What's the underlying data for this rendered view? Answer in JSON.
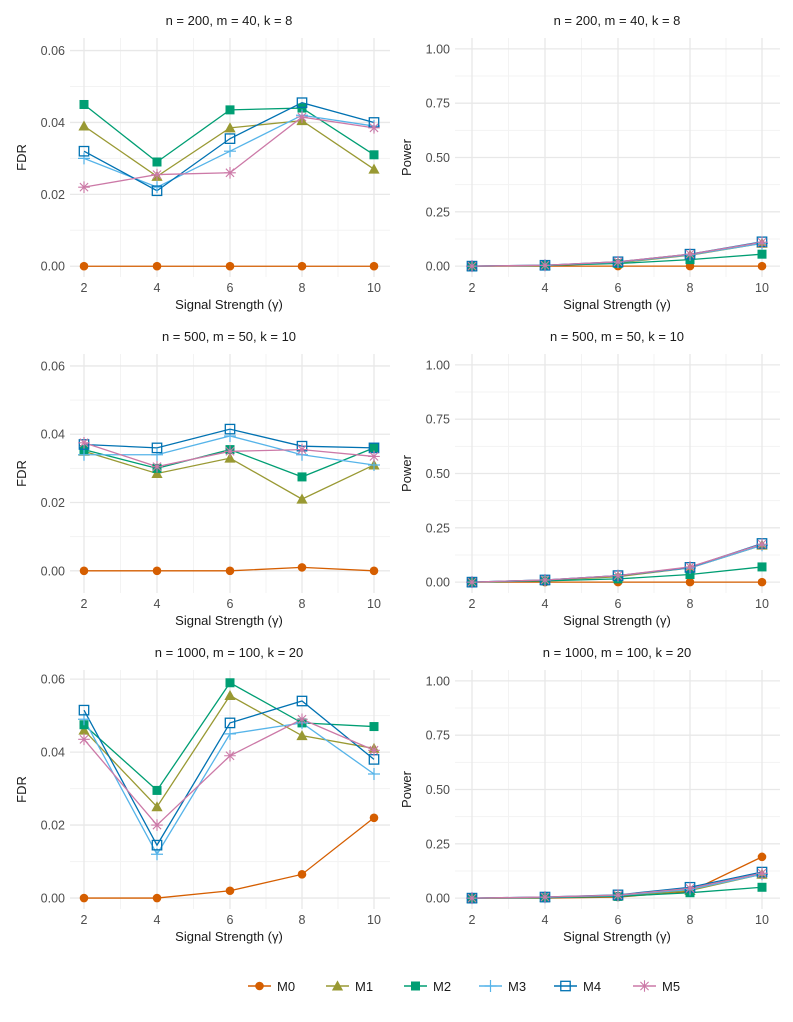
{
  "chart_data": [
    {
      "type": "line",
      "title": "n = 200, m = 40, k = 8",
      "xlabel": "Signal Strength (γ)",
      "ylabel": "FDR",
      "x": [
        2,
        4,
        6,
        8,
        10
      ],
      "xticks": [
        2,
        4,
        6,
        8,
        10
      ],
      "ylim": [
        -0.003,
        0.0635
      ],
      "yticks": [
        0,
        0.02,
        0.04,
        0.06
      ],
      "yticklabels": [
        "0.00",
        "0.02",
        "0.04",
        "0.06"
      ],
      "series": [
        {
          "name": "M0",
          "values": [
            0.0,
            0.0,
            0.0,
            0.0,
            0.0
          ]
        },
        {
          "name": "M1",
          "values": [
            0.039,
            0.025,
            0.0385,
            0.0405,
            0.027
          ]
        },
        {
          "name": "M2",
          "values": [
            0.045,
            0.029,
            0.0435,
            0.044,
            0.031
          ]
        },
        {
          "name": "M3",
          "values": [
            0.03,
            0.022,
            0.032,
            0.042,
            0.039
          ]
        },
        {
          "name": "M4",
          "values": [
            0.032,
            0.021,
            0.0355,
            0.0455,
            0.04
          ]
        },
        {
          "name": "M5",
          "values": [
            0.022,
            0.0255,
            0.026,
            0.0415,
            0.0385
          ]
        }
      ]
    },
    {
      "type": "line",
      "title": "n = 200, m = 40, k = 8",
      "xlabel": "Signal Strength (γ)",
      "ylabel": "Power",
      "x": [
        2,
        4,
        6,
        8,
        10
      ],
      "xticks": [
        2,
        4,
        6,
        8,
        10
      ],
      "ylim": [
        -0.05,
        1.05
      ],
      "yticks": [
        0,
        0.25,
        0.5,
        0.75,
        1
      ],
      "yticklabels": [
        "0.00",
        "0.25",
        "0.50",
        "0.75",
        "1.00"
      ],
      "series": [
        {
          "name": "M0",
          "values": [
            0.0,
            0.0,
            0.0,
            0.0,
            0.0
          ]
        },
        {
          "name": "M1",
          "values": [
            0.0,
            0.003,
            0.015,
            0.05,
            0.105
          ]
        },
        {
          "name": "M2",
          "values": [
            0.0,
            0.003,
            0.012,
            0.03,
            0.055
          ]
        },
        {
          "name": "M3",
          "values": [
            0.0,
            0.004,
            0.018,
            0.052,
            0.105
          ]
        },
        {
          "name": "M4",
          "values": [
            0.0,
            0.004,
            0.02,
            0.055,
            0.112
          ]
        },
        {
          "name": "M5",
          "values": [
            0.0,
            0.004,
            0.02,
            0.055,
            0.11
          ]
        }
      ]
    },
    {
      "type": "line",
      "title": "n = 500, m = 50, k = 10",
      "xlabel": "Signal Strength (γ)",
      "ylabel": "FDR",
      "x": [
        2,
        4,
        6,
        8,
        10
      ],
      "xticks": [
        2,
        4,
        6,
        8,
        10
      ],
      "ylim": [
        -0.0065,
        0.0635
      ],
      "yticks": [
        0,
        0.02,
        0.04,
        0.06
      ],
      "yticklabels": [
        "0.00",
        "0.02",
        "0.04",
        "0.06"
      ],
      "series": [
        {
          "name": "M0",
          "values": [
            0.0,
            0.0,
            0.0,
            0.001,
            0.0
          ]
        },
        {
          "name": "M1",
          "values": [
            0.035,
            0.0285,
            0.033,
            0.021,
            0.031
          ]
        },
        {
          "name": "M2",
          "values": [
            0.0355,
            0.03,
            0.0355,
            0.0275,
            0.036
          ]
        },
        {
          "name": "M3",
          "values": [
            0.034,
            0.034,
            0.0395,
            0.034,
            0.031
          ]
        },
        {
          "name": "M4",
          "values": [
            0.037,
            0.036,
            0.0415,
            0.0365,
            0.036
          ]
        },
        {
          "name": "M5",
          "values": [
            0.0375,
            0.0305,
            0.035,
            0.0355,
            0.0335
          ]
        }
      ]
    },
    {
      "type": "line",
      "title": "n = 500, m = 50, k = 10",
      "xlabel": "Signal Strength (γ)",
      "ylabel": "Power",
      "x": [
        2,
        4,
        6,
        8,
        10
      ],
      "xticks": [
        2,
        4,
        6,
        8,
        10
      ],
      "ylim": [
        -0.05,
        1.05
      ],
      "yticks": [
        0,
        0.25,
        0.5,
        0.75,
        1
      ],
      "yticklabels": [
        "0.00",
        "0.25",
        "0.50",
        "0.75",
        "1.00"
      ],
      "series": [
        {
          "name": "M0",
          "values": [
            0.0,
            0.0,
            0.0,
            0.0,
            0.0
          ]
        },
        {
          "name": "M1",
          "values": [
            0.0,
            0.008,
            0.025,
            0.065,
            0.17
          ]
        },
        {
          "name": "M2",
          "values": [
            0.0,
            0.006,
            0.015,
            0.035,
            0.07
          ]
        },
        {
          "name": "M3",
          "values": [
            0.0,
            0.01,
            0.03,
            0.065,
            0.17
          ]
        },
        {
          "name": "M4",
          "values": [
            0.0,
            0.01,
            0.03,
            0.068,
            0.178
          ]
        },
        {
          "name": "M5",
          "values": [
            0.0,
            0.01,
            0.03,
            0.07,
            0.175
          ]
        }
      ]
    },
    {
      "type": "line",
      "title": "n = 1000, m = 100, k = 20",
      "xlabel": "Signal Strength (γ)",
      "ylabel": "FDR",
      "x": [
        2,
        4,
        6,
        8,
        10
      ],
      "xticks": [
        2,
        4,
        6,
        8,
        10
      ],
      "ylim": [
        -0.003,
        0.0625
      ],
      "yticks": [
        0,
        0.02,
        0.04,
        0.06
      ],
      "yticklabels": [
        "0.00",
        "0.02",
        "0.04",
        "0.06"
      ],
      "series": [
        {
          "name": "M0",
          "values": [
            0.0,
            0.0,
            0.002,
            0.0065,
            0.022
          ]
        },
        {
          "name": "M1",
          "values": [
            0.046,
            0.025,
            0.0555,
            0.0445,
            0.041
          ]
        },
        {
          "name": "M2",
          "values": [
            0.0475,
            0.0295,
            0.059,
            0.048,
            0.047
          ]
        },
        {
          "name": "M3",
          "values": [
            0.049,
            0.012,
            0.045,
            0.048,
            0.034
          ]
        },
        {
          "name": "M4",
          "values": [
            0.0515,
            0.0145,
            0.048,
            0.054,
            0.038
          ]
        },
        {
          "name": "M5",
          "values": [
            0.0435,
            0.02,
            0.039,
            0.049,
            0.0405
          ]
        }
      ]
    },
    {
      "type": "line",
      "title": "n = 1000, m = 100, k = 20",
      "xlabel": "Signal Strength (γ)",
      "ylabel": "Power",
      "x": [
        2,
        4,
        6,
        8,
        10
      ],
      "xticks": [
        2,
        4,
        6,
        8,
        10
      ],
      "ylim": [
        -0.05,
        1.05
      ],
      "yticks": [
        0,
        0.25,
        0.5,
        0.75,
        1
      ],
      "yticklabels": [
        "0.00",
        "0.25",
        "0.50",
        "0.75",
        "1.00"
      ],
      "series": [
        {
          "name": "M0",
          "values": [
            0.0,
            0.0,
            0.005,
            0.03,
            0.19
          ]
        },
        {
          "name": "M1",
          "values": [
            0.0,
            0.003,
            0.01,
            0.035,
            0.11
          ]
        },
        {
          "name": "M2",
          "values": [
            0.0,
            0.002,
            0.008,
            0.025,
            0.05
          ]
        },
        {
          "name": "M3",
          "values": [
            0.0,
            0.004,
            0.012,
            0.04,
            0.11
          ]
        },
        {
          "name": "M4",
          "values": [
            0.0,
            0.005,
            0.015,
            0.05,
            0.12
          ]
        },
        {
          "name": "M5",
          "values": [
            0.0,
            0.005,
            0.014,
            0.045,
            0.115
          ]
        }
      ]
    }
  ],
  "legend": {
    "position": "bottom",
    "items": [
      {
        "name": "M0",
        "color": "#D55E00",
        "shape": "circle"
      },
      {
        "name": "M1",
        "color": "#999933",
        "shape": "triangle"
      },
      {
        "name": "M2",
        "color": "#009E73",
        "shape": "square-filled"
      },
      {
        "name": "M3",
        "color": "#56B4E9",
        "shape": "plus"
      },
      {
        "name": "M4",
        "color": "#0072B2",
        "shape": "square-open"
      },
      {
        "name": "M5",
        "color": "#CC79A7",
        "shape": "asterisk"
      }
    ]
  }
}
